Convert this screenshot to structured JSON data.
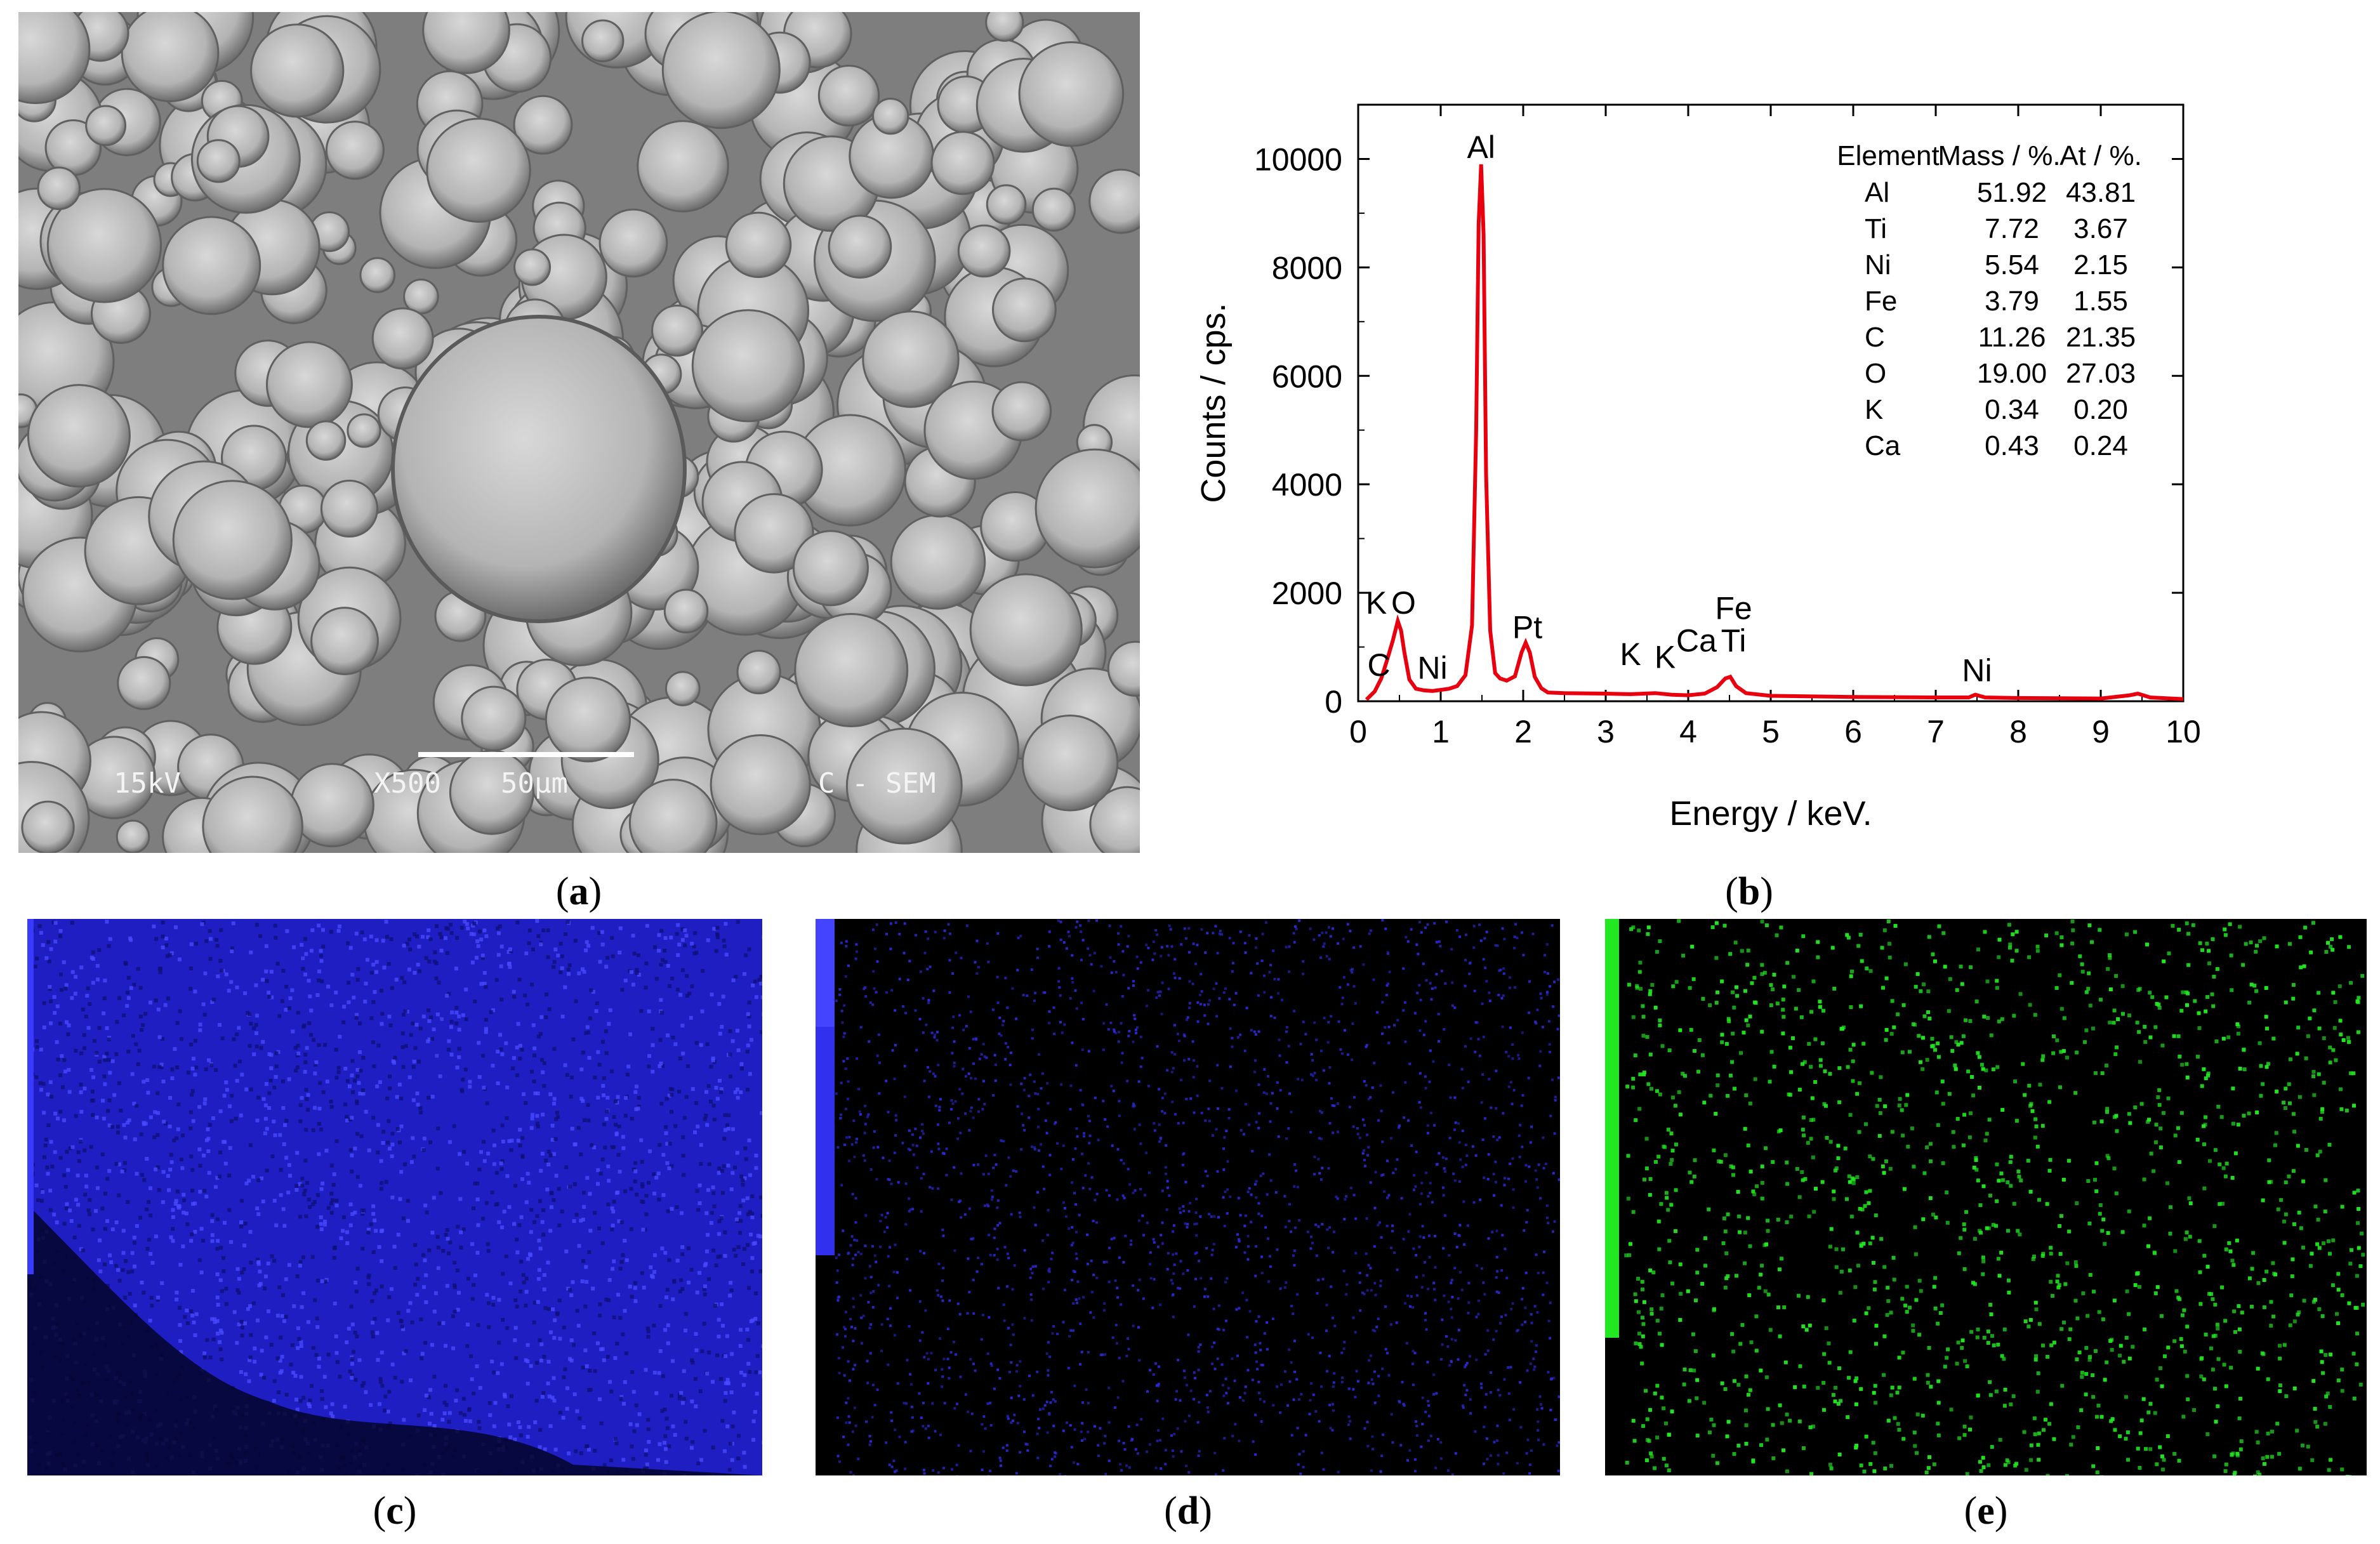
{
  "captions": {
    "a": "a",
    "b": "b",
    "c": "c",
    "d": "d",
    "e": "e"
  },
  "sem": {
    "labels": [
      "15kV",
      "X500",
      "50μm",
      "C - SEM"
    ]
  },
  "chart_data": {
    "type": "line",
    "xlabel": "Energy / keV.",
    "ylabel": "Counts / cps.",
    "xlim": [
      0,
      10
    ],
    "ylim": [
      0,
      11000
    ],
    "xticks": [
      0,
      1,
      2,
      3,
      4,
      5,
      6,
      7,
      8,
      9,
      10
    ],
    "yticks": [
      0,
      2000,
      4000,
      6000,
      8000,
      10000
    ],
    "series": [
      {
        "color": "#e8000f",
        "x": [
          0.1,
          0.2,
          0.28,
          0.35,
          0.42,
          0.48,
          0.52,
          0.56,
          0.62,
          0.7,
          0.8,
          0.9,
          1.0,
          1.1,
          1.2,
          1.3,
          1.38,
          1.43,
          1.46,
          1.49,
          1.52,
          1.55,
          1.6,
          1.66,
          1.72,
          1.8,
          1.9,
          1.98,
          2.03,
          2.08,
          2.14,
          2.22,
          2.3,
          2.5,
          3.0,
          3.3,
          3.6,
          3.8,
          4.0,
          4.2,
          4.35,
          4.45,
          4.51,
          4.58,
          4.7,
          5.0,
          6.0,
          7.0,
          7.4,
          7.48,
          7.6,
          8.0,
          9.0,
          9.35,
          9.45,
          9.6,
          10.0
        ],
        "y": [
          30,
          180,
          420,
          760,
          1120,
          1480,
          1300,
          900,
          400,
          230,
          200,
          190,
          210,
          230,
          280,
          480,
          1400,
          5000,
          8800,
          9900,
          8600,
          4200,
          1300,
          520,
          420,
          380,
          460,
          900,
          1080,
          900,
          450,
          240,
          160,
          150,
          140,
          130,
          150,
          120,
          110,
          140,
          260,
          420,
          450,
          280,
          150,
          100,
          80,
          70,
          70,
          120,
          70,
          60,
          50,
          110,
          140,
          70,
          40
        ]
      }
    ],
    "peak_labels": [
      {
        "text": "Al",
        "x": 1.49,
        "y": 9900
      },
      {
        "text": "K",
        "x": 0.22,
        "y": 1500
      },
      {
        "text": "O",
        "x": 0.55,
        "y": 1500
      },
      {
        "text": "C",
        "x": 0.25,
        "y": 350
      },
      {
        "text": "Ni",
        "x": 0.9,
        "y": 300
      },
      {
        "text": "Pt",
        "x": 2.05,
        "y": 1050
      },
      {
        "text": "K",
        "x": 3.3,
        "y": 550
      },
      {
        "text": "K",
        "x": 3.72,
        "y": 500
      },
      {
        "text": "Ca",
        "x": 4.1,
        "y": 800
      },
      {
        "text": "Ti",
        "x": 4.55,
        "y": 800
      },
      {
        "text": "Fe",
        "x": 4.55,
        "y": 1400
      },
      {
        "text": "Ni",
        "x": 7.5,
        "y": 250
      }
    ],
    "table": {
      "headers": [
        "Element",
        "Mass / %.",
        "At / %."
      ],
      "rows": [
        [
          "Al",
          "51.92",
          "43.81"
        ],
        [
          "Ti",
          "7.72",
          "3.67"
        ],
        [
          "Ni",
          "5.54",
          "2.15"
        ],
        [
          "Fe",
          "3.79",
          "1.55"
        ],
        [
          "C",
          "11.26",
          "21.35"
        ],
        [
          "O",
          "19.00",
          "27.03"
        ],
        [
          "K",
          "0.34",
          "0.20"
        ],
        [
          "Ca",
          "0.43",
          "0.24"
        ]
      ]
    },
    "grid": false
  },
  "colors": {
    "spectrum": "#e8000f",
    "map_c": "#2222d8",
    "map_d": "#2a2ad6",
    "map_e": "#22e822"
  }
}
